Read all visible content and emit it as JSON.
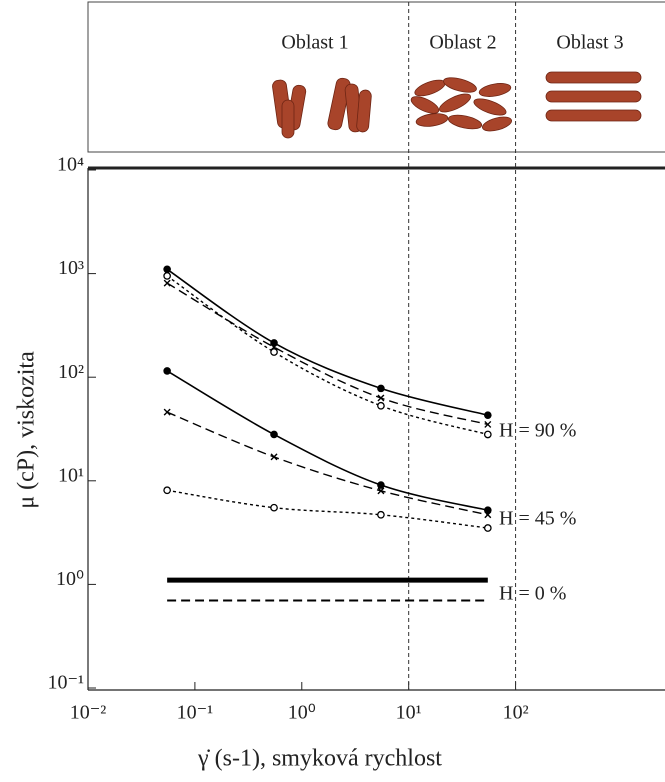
{
  "chart_data": {
    "type": "line",
    "x_label": "γ̇ (s-1), smyková rychlost",
    "y_label": "μ (cP), viskozita",
    "x_log": true,
    "y_log": true,
    "xlim": [
      0.01,
      2500
    ],
    "xticks": [
      {
        "value": 0.01,
        "label": "10⁻²"
      },
      {
        "value": 0.1,
        "label": "10⁻¹"
      },
      {
        "value": 1,
        "label": "10⁰"
      },
      {
        "value": 10,
        "label": "10¹"
      },
      {
        "value": 100,
        "label": "10²"
      }
    ],
    "ylim": [
      0.1,
      10000
    ],
    "yticks": [
      {
        "value": 0.1,
        "label": "10⁻¹"
      },
      {
        "value": 1,
        "label": "10⁰"
      },
      {
        "value": 10,
        "label": "10¹"
      },
      {
        "value": 100,
        "label": "10²"
      },
      {
        "value": 1000,
        "label": "10³"
      },
      {
        "value": 10000,
        "label": "10⁴"
      }
    ],
    "vlines": [
      10,
      100
    ],
    "regions": [
      "Oblast 1",
      "Oblast 2",
      "Oblast 3"
    ],
    "annotations": [
      "H = 90 %",
      "H = 45 %",
      "H = 0 %"
    ],
    "x": [
      0.055,
      0.55,
      5.5,
      55
    ],
    "series": [
      {
        "color": "#000000",
        "marker": "filled-circle",
        "line_style": "solid",
        "line_width": 1.6,
        "values": [
          1100,
          214,
          78,
          43
        ]
      },
      {
        "color": "#000000",
        "marker": "open-circle",
        "line_style": "dotted",
        "line_width": 1.4,
        "values": [
          950,
          175,
          53,
          28
        ]
      },
      {
        "color": "#000000",
        "marker": "x",
        "line_style": "dashed",
        "line_width": 1.4,
        "values": [
          810,
          195,
          63,
          35
        ]
      },
      {
        "color": "#000000",
        "marker": "filled-circle",
        "line_style": "solid",
        "line_width": 1.6,
        "values": [
          115,
          28,
          9.1,
          5.2
        ]
      },
      {
        "color": "#000000",
        "marker": "x",
        "line_style": "dashed",
        "line_width": 1.4,
        "values": [
          46,
          17,
          8,
          4.7
        ]
      },
      {
        "color": "#000000",
        "marker": "open-circle",
        "line_style": "dotted",
        "line_width": 1.4,
        "values": [
          8.1,
          5.5,
          4.7,
          3.5
        ]
      },
      {
        "color": "#000000",
        "marker": "none",
        "line_style": "solid",
        "line_width": 5,
        "values": [
          1.1,
          1.1,
          1.1,
          1.1
        ]
      },
      {
        "color": "#000000",
        "marker": "none",
        "line_style": "dashed",
        "line_width": 2,
        "values": [
          0.7,
          0.7,
          0.7,
          0.7
        ]
      }
    ]
  }
}
